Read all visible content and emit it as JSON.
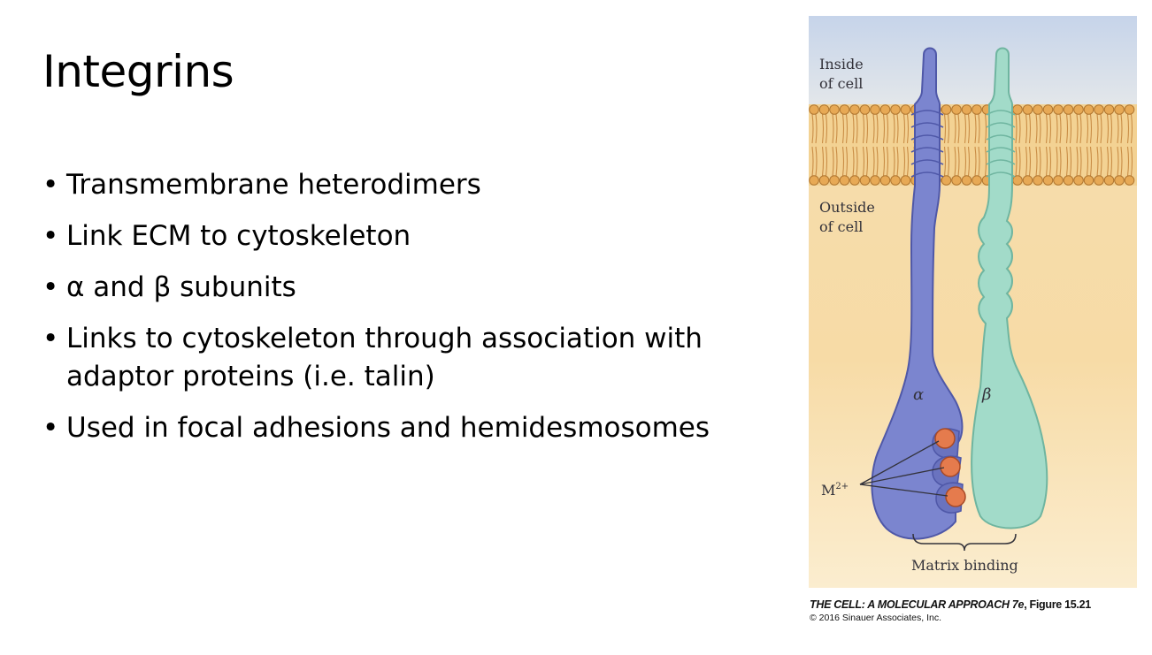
{
  "slide": {
    "title": "Integrins",
    "bullets": [
      "Transmembrane heterodimers",
      "Link ECM to cytoskeleton",
      "α and β subunits",
      "Links to cytoskeleton through association with adaptor proteins (i.e. talin)",
      "Used in focal adhesions and hemidesmosomes"
    ]
  },
  "figure": {
    "labels": {
      "inside_line1": "Inside",
      "inside_line2": "of cell",
      "outside_line1": "Outside",
      "outside_line2": "of cell",
      "alpha": "α",
      "beta": "β",
      "metal": "M",
      "metal_sup": "2+",
      "matrix_binding": "Matrix binding"
    },
    "colors": {
      "inside_bg_top": "#c2d1e8",
      "outside_bg": "#f7d9a0",
      "membrane": "#d7994a",
      "alpha_subunit": "#7b84cf",
      "beta_subunit": "#99d7c3",
      "metal_ion": "#e0764a"
    }
  },
  "caption": {
    "book": "THE CELL: A MOLECULAR APPROACH 7e",
    "figure_ref": ", Figure 15.21",
    "copyright": "© 2016 Sinauer Associates, Inc."
  }
}
